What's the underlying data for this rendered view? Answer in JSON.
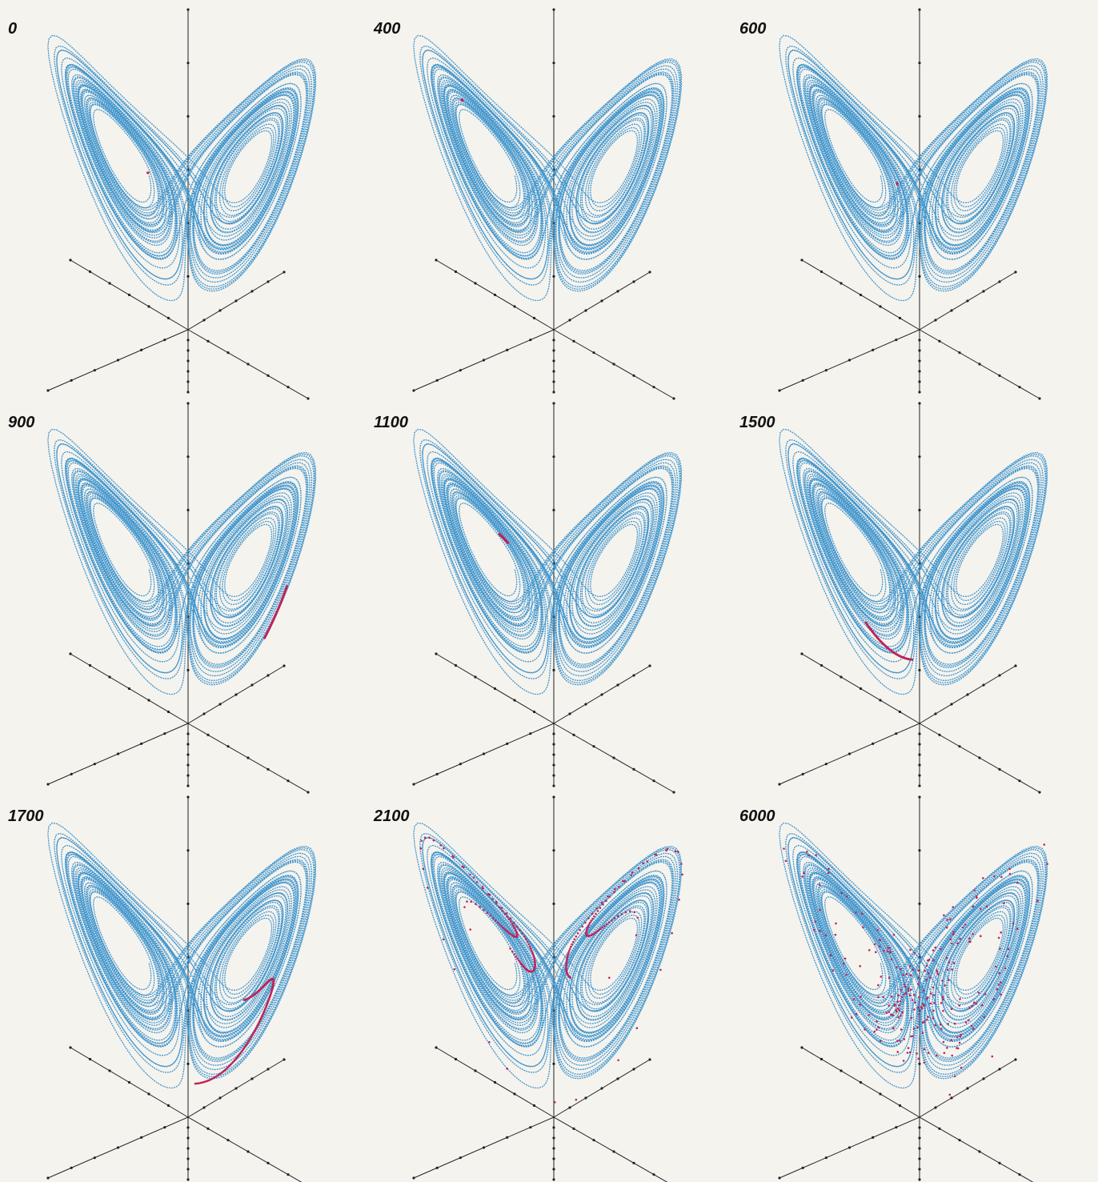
{
  "panels": [
    {
      "label": "0"
    },
    {
      "label": "400"
    },
    {
      "label": "600"
    },
    {
      "label": "900"
    },
    {
      "label": "1100"
    },
    {
      "label": "1500"
    },
    {
      "label": "1700"
    },
    {
      "label": "2100"
    },
    {
      "label": "6000"
    }
  ]
}
